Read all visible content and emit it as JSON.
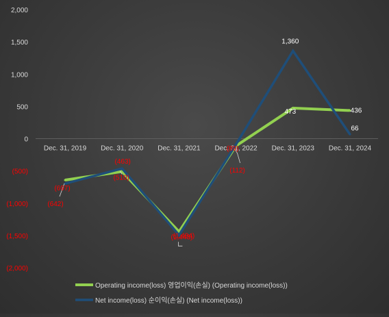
{
  "chart_data": {
    "type": "line",
    "title": "",
    "xlabel": "",
    "ylabel": "",
    "categories": [
      "Dec. 31, 2019",
      "Dec. 31, 2020",
      "Dec. 31, 2021",
      "Dec. 31, 2022",
      "Dec. 31, 2023",
      "Dec. 31, 2024"
    ],
    "ylim": [
      -2000,
      2000
    ],
    "yticks": [
      2000,
      1500,
      1000,
      500,
      0,
      -500,
      -1000,
      -1500,
      -2000
    ],
    "ytick_labels": [
      "2,000",
      "1,500",
      "1,000",
      "500",
      "0",
      "(500)",
      "(1,000)",
      "(1,500)",
      "(2,000)"
    ],
    "grid": false,
    "legend_position": "bottom",
    "series": [
      {
        "name": "Operating income(loss) 영업이익(손실) (Operating income(loss))",
        "color": "#92d050",
        "values": [
          -642,
          -510,
          -1443,
          -112,
          473,
          436
        ],
        "labels": [
          "(642)",
          "(510)",
          "(1,443)",
          "(112)",
          "473",
          "436"
        ]
      },
      {
        "name": "Net income(loss) 순이익(손실) (Net income(loss))",
        "color": "#1f4e79",
        "values": [
          -697,
          -463,
          -1494,
          -89,
          1360,
          66
        ],
        "labels": [
          "(697)",
          "(463)",
          "(1,494)",
          "(89)",
          "1,360",
          "66"
        ]
      }
    ],
    "colors": {
      "positive_label": "#ffffff",
      "negative_label": "#ff0000",
      "axis": "#d9d9d9"
    }
  }
}
